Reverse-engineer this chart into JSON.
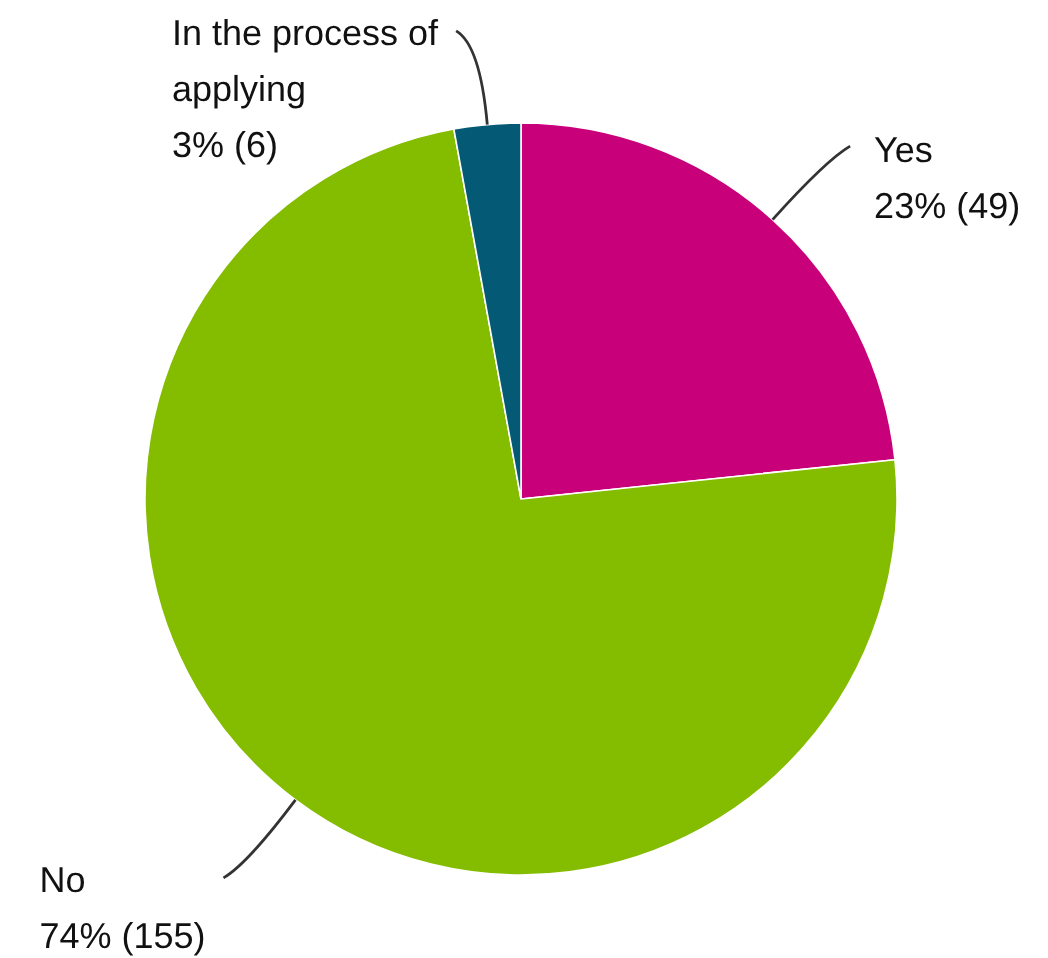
{
  "chart_data": {
    "type": "pie",
    "categories": [
      "Yes",
      "No",
      "In the process of applying"
    ],
    "values": [
      49,
      155,
      6
    ],
    "value_labels": [
      "23% (49)",
      "74% (155)",
      "3% (6)"
    ],
    "colors": [
      "#c8007a",
      "#84bc00",
      "#045a74"
    ]
  }
}
